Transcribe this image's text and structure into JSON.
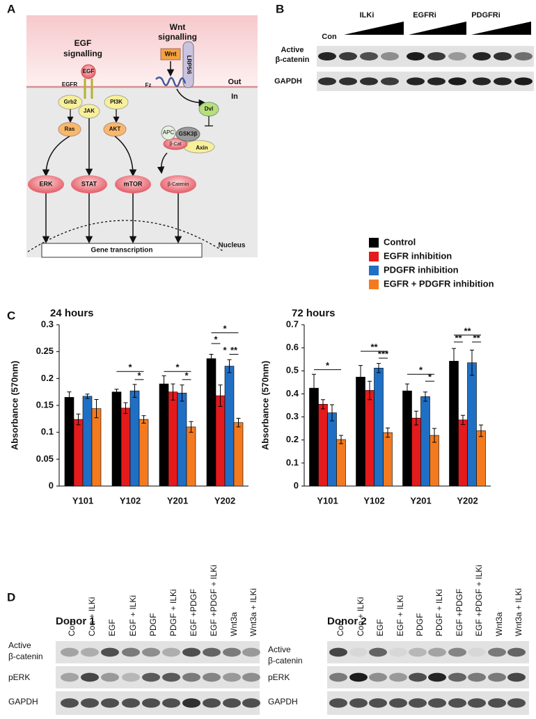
{
  "panel_a": {
    "label": "A",
    "egf_title": [
      "EGF",
      "signalling"
    ],
    "wnt_title": [
      "Wnt",
      "signalling"
    ],
    "nodes": {
      "egf": "EGF",
      "egfr": "EGFR",
      "wnt": "Wnt",
      "lrp": "LRP5/6",
      "fz": "Fz",
      "grb2": "Grb2",
      "jak": "JAK",
      "pi3k": "PI3K",
      "ras": "Ras",
      "akt": "AKT",
      "dvl": "Dvl",
      "apc": "APC",
      "gsk": "GSK3β",
      "bcat": "β-Cat",
      "axin": "Axin",
      "erk": "ERK",
      "stat": "STAT",
      "mtor": "mTOR",
      "bcatenin": "β-Catenin"
    },
    "out": "Out",
    "in": "In",
    "nucleus": "Nucleus",
    "gene": "Gene transcription"
  },
  "panel_b": {
    "label": "B",
    "groups": [
      "ILKi",
      "EGFRi",
      "PDGFRi"
    ],
    "control": "Con",
    "rows": [
      [
        "Active",
        "β-catenin"
      ],
      [
        "GAPDH"
      ]
    ]
  },
  "panel_c_label": "C",
  "chart_data": [
    {
      "type": "bar",
      "title": "24 hours",
      "y_label": "Absorbance (570nm)",
      "categories": [
        "Y101",
        "Y102",
        "Y201",
        "Y202"
      ],
      "series": [
        {
          "name": "Control",
          "color": "#000000",
          "values": [
            0.165,
            0.175,
            0.19,
            0.237
          ],
          "errors": [
            0.01,
            0.005,
            0.015,
            0.008
          ]
        },
        {
          "name": "EGFR inhibition",
          "color": "#e41a1c",
          "values": [
            0.124,
            0.145,
            0.175,
            0.168
          ],
          "errors": [
            0.01,
            0.01,
            0.015,
            0.02
          ]
        },
        {
          "name": "PDGFR inhibition",
          "color": "#1f6fc5",
          "values": [
            0.167,
            0.177,
            0.173,
            0.223
          ],
          "errors": [
            0.004,
            0.012,
            0.015,
            0.012
          ]
        },
        {
          "name": "EGFR + PDGFR inhibition",
          "color": "#f47a1f",
          "values": [
            0.144,
            0.124,
            0.11,
            0.118
          ],
          "errors": [
            0.017,
            0.007,
            0.01,
            0.008
          ]
        }
      ],
      "ylim": [
        0,
        0.3
      ],
      "yticks": [
        0,
        0.05,
        0.1,
        0.15,
        0.2,
        0.25,
        0.3
      ],
      "significance": [
        "*",
        "*",
        "*",
        "*",
        "*",
        "*",
        "*",
        "**"
      ]
    },
    {
      "type": "bar",
      "title": "72 hours",
      "y_label": "Absorbance (570nm)",
      "categories": [
        "Y101",
        "Y102",
        "Y201",
        "Y202"
      ],
      "series": [
        {
          "color": "#000000",
          "values": [
            0.425,
            0.473,
            0.413,
            0.542
          ],
          "errors": [
            0.06,
            0.05,
            0.03,
            0.055
          ]
        },
        {
          "color": "#e41a1c",
          "values": [
            0.355,
            0.415,
            0.295,
            0.287
          ],
          "errors": [
            0.02,
            0.04,
            0.03,
            0.02
          ]
        },
        {
          "color": "#1f6fc5",
          "values": [
            0.318,
            0.512,
            0.388,
            0.535
          ],
          "errors": [
            0.035,
            0.02,
            0.02,
            0.055
          ]
        },
        {
          "color": "#f47a1f",
          "values": [
            0.202,
            0.232,
            0.22,
            0.24
          ],
          "errors": [
            0.018,
            0.02,
            0.03,
            0.025
          ]
        }
      ],
      "ylim": [
        0,
        0.7
      ],
      "yticks": [
        0,
        0.1,
        0.2,
        0.3,
        0.4,
        0.5,
        0.6,
        0.7
      ],
      "significance": [
        "*",
        "**",
        "***",
        "*",
        "*",
        "**",
        "**",
        "**"
      ]
    }
  ],
  "panel_d": {
    "label": "D",
    "rows": [
      [
        "Active",
        "β-catenin"
      ],
      [
        "pERK"
      ],
      [
        "GAPDH"
      ]
    ],
    "donors": [
      {
        "title": "Donor 1",
        "lanes": [
          "Con",
          "Con + ILKi",
          "EGF",
          "EGF + ILKi",
          "PDGF",
          "PDGF + ILKi",
          "EGF +PDGF",
          "EGF +PDGF + ILKi",
          "Wnt3a",
          "Wnt3a + ILKi"
        ]
      },
      {
        "title": "Donor 2",
        "lanes": [
          "Con",
          "Con + ILKi",
          "EGF",
          "EGF + ILKi",
          "PDGF",
          "PDGF + ILKi",
          "EGF +PDGF",
          "EGF +PDGF + ILKi",
          "Wnt3a",
          "Wnt3a + ILKi"
        ]
      }
    ]
  }
}
